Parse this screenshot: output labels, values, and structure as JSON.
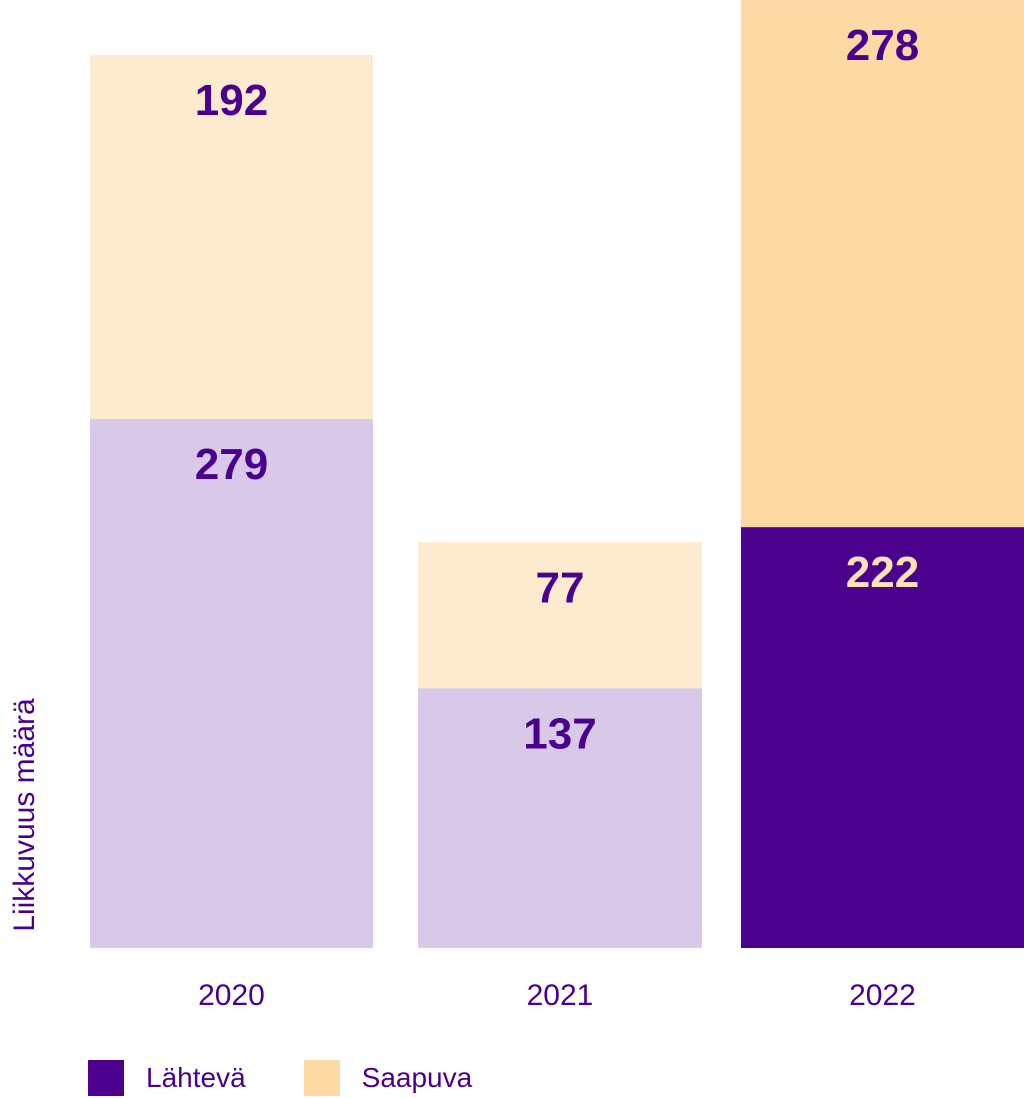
{
  "chart_data": {
    "type": "bar",
    "stacked": true,
    "categories": [
      "2020",
      "2021",
      "2022"
    ],
    "series": [
      {
        "name": "Lähtevä",
        "values": [
          279,
          137,
          222
        ]
      },
      {
        "name": "Saapuva",
        "values": [
          192,
          77,
          278
        ]
      }
    ],
    "value_labels": [
      {
        "bottom": "279",
        "top": "192"
      },
      {
        "bottom": "137",
        "top": "77"
      },
      {
        "bottom": "222",
        "top": "278"
      }
    ],
    "title": "",
    "xlabel": "",
    "ylabel": "Liikkuvuus määrä",
    "ylim": [
      0,
      500
    ],
    "grid": false,
    "legend_position": "bottom-left"
  },
  "colors": {
    "lahteva_muted": "#d9c9e8",
    "saapuva_muted": "#fdebcf",
    "lahteva_strong": "#4b008e",
    "saapuva_strong": "#fdd9a4",
    "text_purple": "#4a008f",
    "text_on_dark": "#fde2b4"
  },
  "legend": {
    "items": [
      {
        "label": "Lähtevä",
        "color": "#4b008e"
      },
      {
        "label": "Saapuva",
        "color": "#fdd9a4"
      }
    ]
  }
}
